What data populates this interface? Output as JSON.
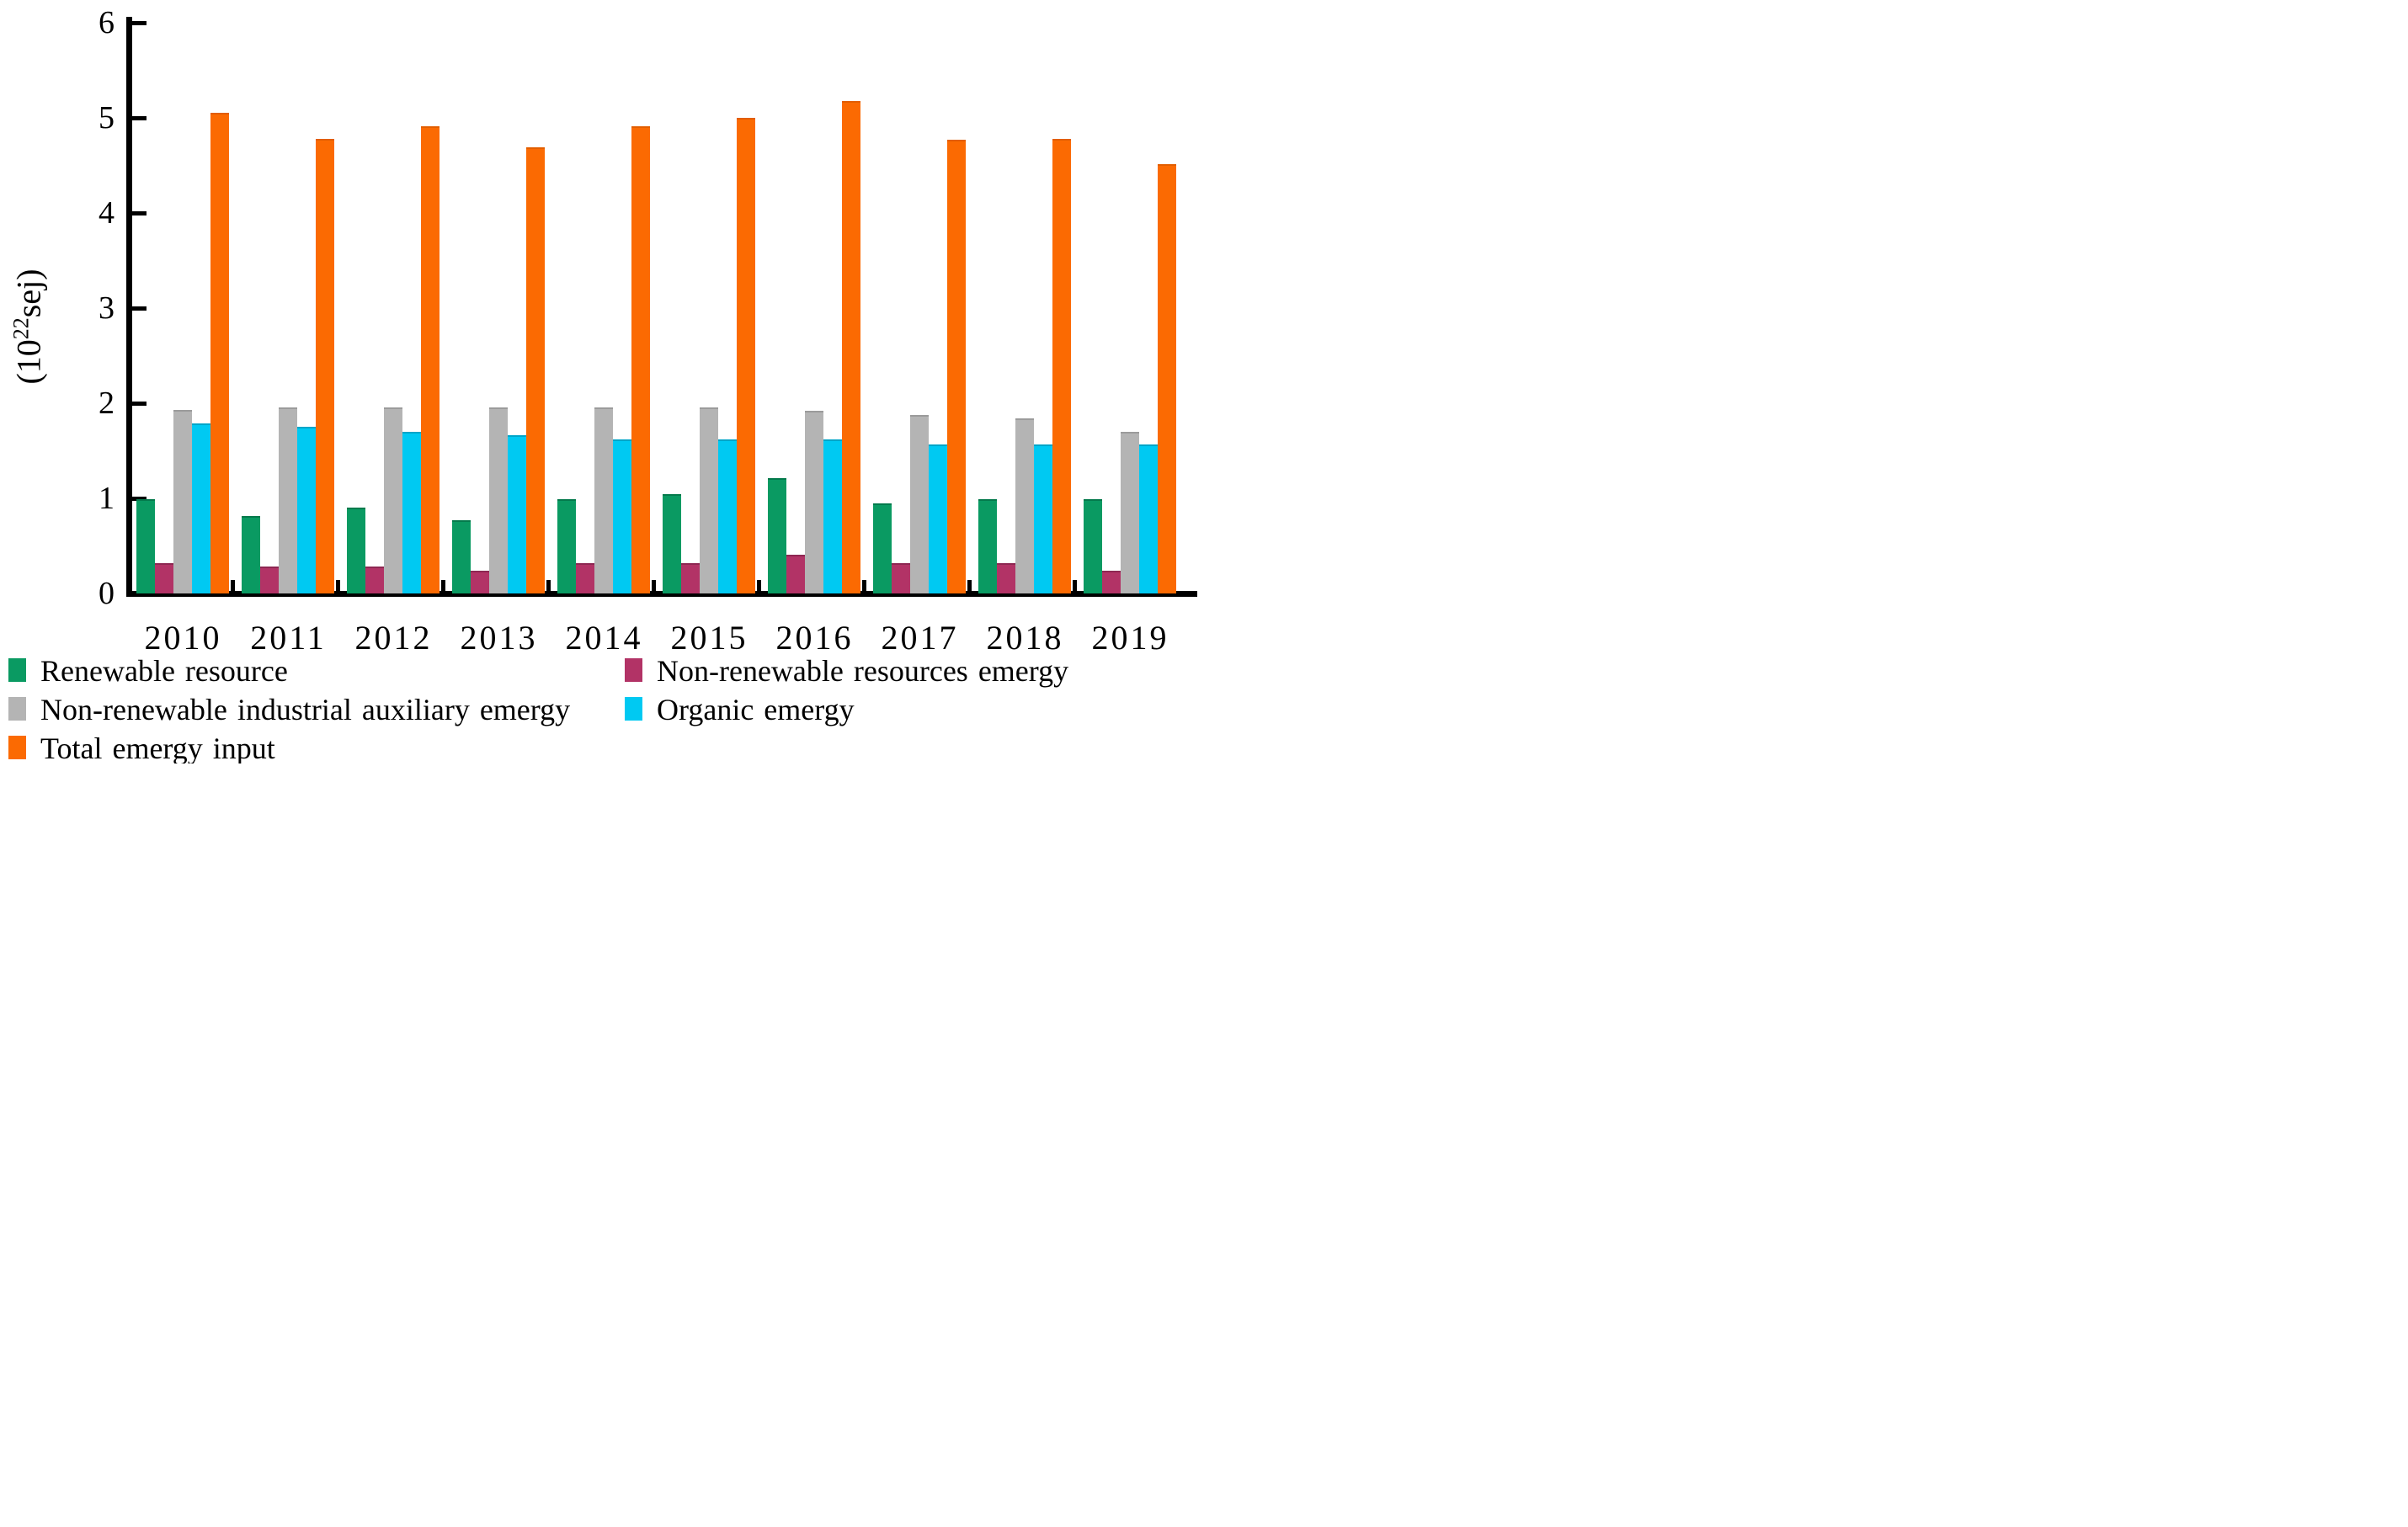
{
  "chart_data": {
    "type": "bar",
    "title": "",
    "ylabel_prefix": "(10",
    "ylabel_exponent": "22",
    "ylabel_suffix": "sej)",
    "ylim": [
      0,
      6
    ],
    "yticks": [
      0,
      1,
      2,
      3,
      4,
      5,
      6
    ],
    "grid": false,
    "legend_position": "bottom-left, two columns",
    "categories": [
      "2010",
      "2011",
      "2012",
      "2013",
      "2014",
      "2015",
      "2016",
      "2017",
      "2018",
      "2019"
    ],
    "series": [
      {
        "name": "Renewable resource",
        "color": "#0a9a62",
        "edge_color": "#047a4c",
        "values": [
          0.99,
          0.81,
          0.9,
          0.77,
          0.99,
          1.04,
          1.21,
          0.95,
          0.99,
          0.99
        ]
      },
      {
        "name": "Non-renewable resources emergy",
        "color": "#b23366",
        "edge_color": "#8e2752",
        "values": [
          0.32,
          0.28,
          0.28,
          0.24,
          0.32,
          0.32,
          0.41,
          0.32,
          0.32,
          0.24
        ]
      },
      {
        "name": "Non-renewable industrial auxiliary emergy",
        "color": "#b4b4b4",
        "edge_color": "#9b9b9b",
        "values": [
          1.93,
          1.96,
          1.96,
          1.96,
          1.96,
          1.96,
          1.92,
          1.88,
          1.84,
          1.7
        ]
      },
      {
        "name": "Organic emergy",
        "color": "#00c9f2",
        "edge_color": "#00a5c8",
        "values": [
          1.79,
          1.75,
          1.7,
          1.66,
          1.62,
          1.62,
          1.62,
          1.57,
          1.57,
          1.57
        ]
      },
      {
        "name": "Total emergy input",
        "color": "#fb6a02",
        "edge_color": "#e25e00",
        "values": [
          5.05,
          4.78,
          4.91,
          4.69,
          4.91,
          5.0,
          5.18,
          4.77,
          4.78,
          4.51
        ]
      }
    ],
    "axis_color": "#000000",
    "background_color": "#ffffff"
  },
  "legend": {
    "rows": [
      [
        0,
        1
      ],
      [
        2,
        3
      ],
      [
        4
      ]
    ]
  }
}
